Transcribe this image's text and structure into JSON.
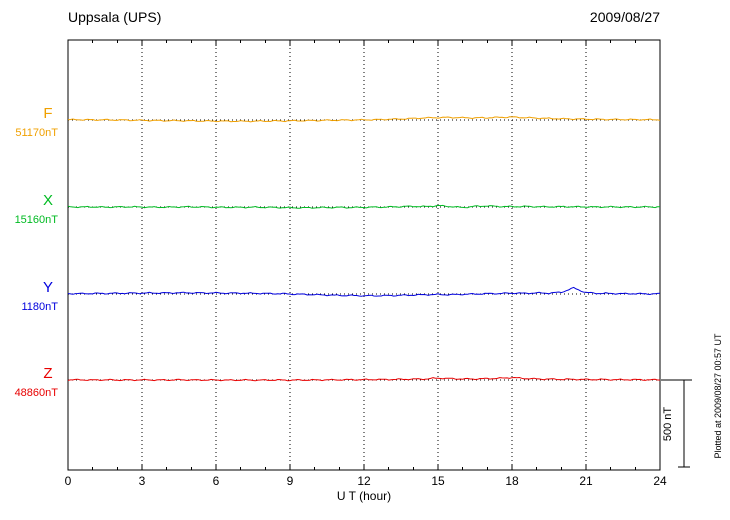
{
  "header": {
    "title": "Uppsala (UPS)",
    "date": "2009/08/27"
  },
  "axis": {
    "x_title": "U T (hour)"
  },
  "scale_bar": {
    "label": "500 nT"
  },
  "footer": {
    "plotted_at": "Plotted at 2009/08/27 00:57 UT"
  },
  "chart_data": {
    "type": "line",
    "title": "Uppsala (UPS)",
    "date": "2009/08/27",
    "xlabel": "U T (hour)",
    "x_range": [
      0,
      24
    ],
    "x_ticks": [
      0,
      3,
      6,
      9,
      12,
      15,
      18,
      21,
      24
    ],
    "x_step_hours": 0.5,
    "scale_bar_nT": 500,
    "series_spacing_nT": 500,
    "grid": "dotted-vertical-every-3h",
    "legend_position": "left-of-each-trace",
    "series": [
      {
        "name": "F",
        "value_label": "51170nT",
        "baseline_nT": 51170,
        "color": "#f0a000",
        "deviations_nT": [
          2,
          2,
          1,
          1,
          0,
          -1,
          -2,
          -3,
          -4,
          -4,
          -5,
          -6,
          -6,
          -7,
          -7,
          -7,
          -6,
          -6,
          -5,
          -4,
          -3,
          -2,
          -1,
          0,
          1,
          2,
          4,
          6,
          9,
          12,
          14,
          15,
          13,
          12,
          13,
          15,
          17,
          14,
          11,
          9,
          7,
          6,
          5,
          4,
          3,
          3,
          2,
          2,
          2
        ]
      },
      {
        "name": "X",
        "value_label": "15160nT",
        "baseline_nT": 15160,
        "color": "#00bb22",
        "deviations_nT": [
          1,
          0,
          1,
          -1,
          0,
          1,
          0,
          -1,
          -1,
          0,
          1,
          0,
          -1,
          -2,
          -2,
          -1,
          -2,
          -3,
          -4,
          -5,
          -4,
          -3,
          -2,
          -3,
          -2,
          -1,
          0,
          2,
          4,
          2,
          8,
          3,
          -3,
          4,
          6,
          3,
          2,
          3,
          2,
          1,
          2,
          1,
          1,
          0,
          1,
          0,
          0,
          1,
          0
        ]
      },
      {
        "name": "Y",
        "value_label": "1180nT",
        "baseline_nT": 1180,
        "color": "#0000dd",
        "deviations_nT": [
          2,
          2,
          3,
          3,
          4,
          5,
          5,
          6,
          6,
          7,
          7,
          6,
          6,
          5,
          5,
          4,
          3,
          2,
          0,
          -2,
          -4,
          -6,
          -8,
          -9,
          -10,
          -10,
          -9,
          -8,
          -6,
          -4,
          -3,
          -4,
          -2,
          0,
          2,
          3,
          5,
          4,
          6,
          5,
          10,
          35,
          8,
          4,
          3,
          2,
          2,
          1,
          1
        ]
      },
      {
        "name": "Z",
        "value_label": "48860nT",
        "baseline_nT": 48860,
        "color": "#e80000",
        "deviations_nT": [
          1,
          1,
          0,
          1,
          0,
          0,
          1,
          0,
          0,
          1,
          0,
          0,
          0,
          -1,
          0,
          -1,
          -1,
          0,
          -1,
          0,
          0,
          1,
          1,
          2,
          2,
          3,
          3,
          4,
          5,
          6,
          11,
          8,
          6,
          6,
          8,
          10,
          14,
          9,
          6,
          5,
          4,
          4,
          3,
          3,
          2,
          2,
          2,
          1,
          1
        ]
      }
    ]
  }
}
